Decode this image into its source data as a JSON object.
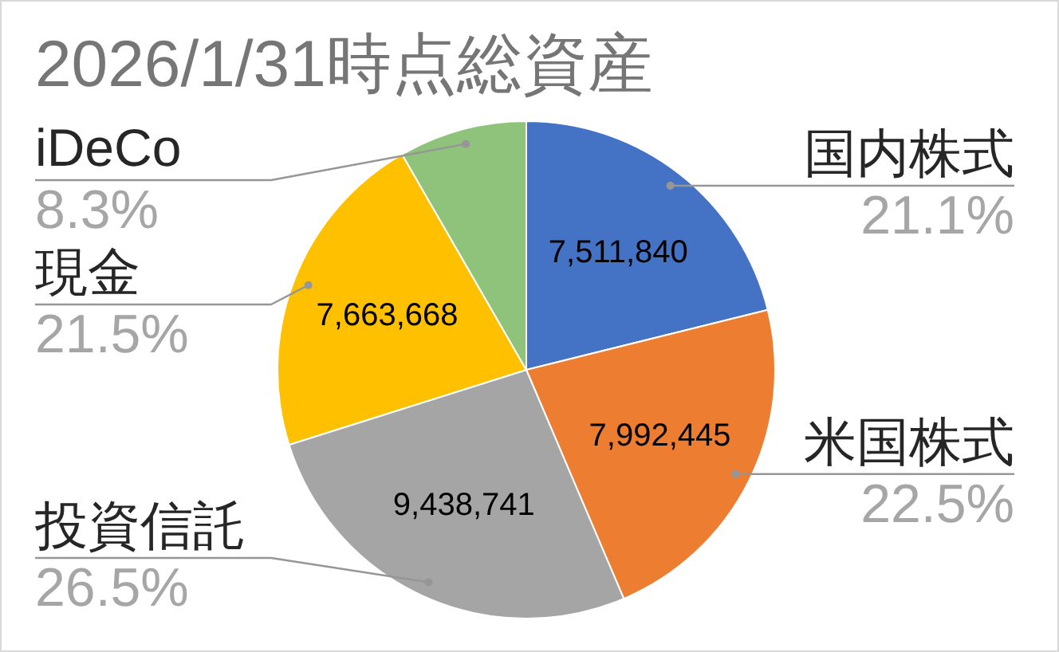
{
  "chart_data": {
    "type": "pie",
    "title": "2026/1/31時点総資産",
    "categories": [
      "国内株式",
      "米国株式",
      "投資信託",
      "現金",
      "iDeCo"
    ],
    "values": [
      7511840,
      7992445,
      9438741,
      7663668,
      2960000
    ],
    "colors": [
      "#4472c4",
      "#ed7d31",
      "#a5a5a5",
      "#ffc000",
      "#8fc27a"
    ],
    "value_labels": [
      "7,511,840",
      "7,992,445",
      "9,438,741",
      "7,663,668",
      null
    ],
    "annotations": [
      {
        "text": "21.1%",
        "x": "国内株式"
      },
      {
        "text": "22.5%",
        "x": "米国株式"
      },
      {
        "text": "26.5%",
        "x": "投資信託"
      },
      {
        "text": "21.5%",
        "x": "現金"
      },
      {
        "text": "8.3%",
        "x": "iDeCo"
      }
    ]
  }
}
